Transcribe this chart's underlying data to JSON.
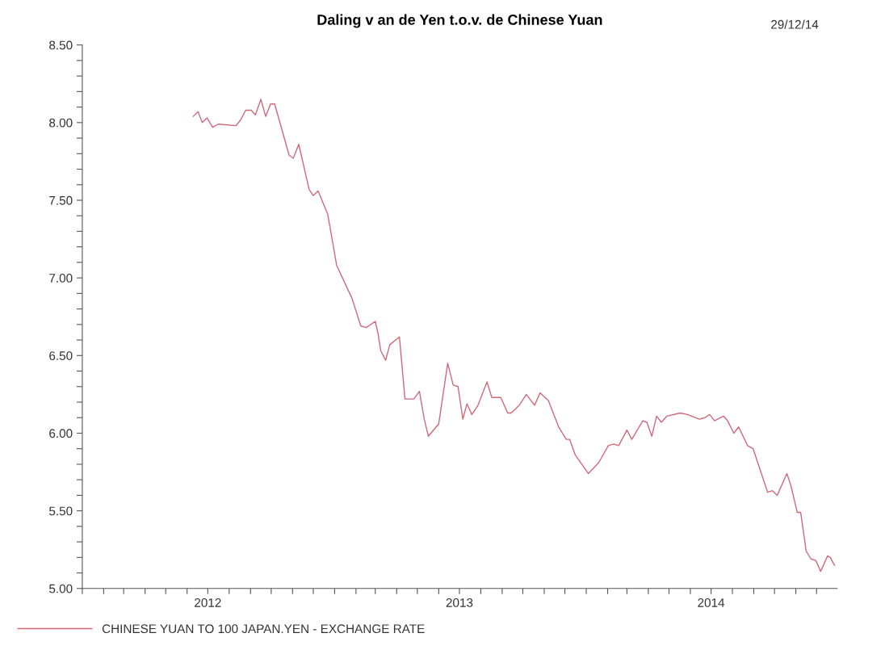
{
  "chart_data": {
    "type": "line",
    "title": "Daling v an de Yen t.o.v. de Chinese Yuan",
    "annotations": [
      "29/12/14"
    ],
    "x": [
      "2012-06-10",
      "2012-06-17",
      "2012-06-23",
      "2012-06-30",
      "2012-07-08",
      "2012-07-16",
      "2012-08-11",
      "2012-08-18",
      "2012-08-25",
      "2012-09-02",
      "2012-09-08",
      "2012-09-16",
      "2012-09-23",
      "2012-09-30",
      "2012-10-06",
      "2012-10-27",
      "2012-11-02",
      "2012-11-10",
      "2012-11-25",
      "2012-12-01",
      "2012-12-08",
      "2012-12-22",
      "2013-01-04",
      "2013-01-26",
      "2013-02-08",
      "2013-02-16",
      "2013-03-01",
      "2013-03-05",
      "2013-03-09",
      "2013-03-16",
      "2013-03-22",
      "2013-04-05",
      "2013-04-13",
      "2013-04-26",
      "2013-05-04",
      "2013-05-11",
      "2013-05-17",
      "2013-06-01",
      "2013-06-14",
      "2013-06-22",
      "2013-06-29",
      "2013-07-06",
      "2013-07-12",
      "2013-07-19",
      "2013-07-28",
      "2013-08-10",
      "2013-08-17",
      "2013-08-30",
      "2013-09-09",
      "2013-09-14",
      "2013-09-26",
      "2013-10-06",
      "2013-10-18",
      "2013-10-26",
      "2013-11-07",
      "2013-11-22",
      "2013-12-03",
      "2013-12-08",
      "2013-12-16",
      "2014-01-04",
      "2014-01-19",
      "2014-02-02",
      "2014-02-10",
      "2014-02-17",
      "2014-03-01",
      "2014-03-08",
      "2014-03-24",
      "2014-03-30",
      "2014-04-06",
      "2014-04-13",
      "2014-04-20",
      "2014-04-28",
      "2014-05-17",
      "2014-05-28",
      "2014-06-14",
      "2014-06-22",
      "2014-06-29",
      "2014-07-06",
      "2014-07-19",
      "2014-07-25",
      "2014-08-03",
      "2014-08-10",
      "2014-08-23",
      "2014-08-31",
      "2014-09-21",
      "2014-09-28",
      "2014-10-05",
      "2014-10-19",
      "2014-10-25",
      "2014-11-03",
      "2014-11-08",
      "2014-11-16",
      "2014-11-23",
      "2014-11-30",
      "2014-12-07",
      "2014-12-17",
      "2014-12-21",
      "2014-12-27"
    ],
    "series": [
      {
        "name": "CHINESE YUAN TO 100 JAPAN.YEN - EXCHANGE RATE",
        "color": "#d06a78",
        "values": [
          8.04,
          8.07,
          8.0,
          8.03,
          7.97,
          7.99,
          7.98,
          8.02,
          8.08,
          8.08,
          8.05,
          8.15,
          8.04,
          8.12,
          8.12,
          7.79,
          7.77,
          7.86,
          7.57,
          7.53,
          7.56,
          7.41,
          7.08,
          6.87,
          6.69,
          6.68,
          6.72,
          6.64,
          6.53,
          6.47,
          6.57,
          6.62,
          6.22,
          6.22,
          6.27,
          6.09,
          5.98,
          6.06,
          6.45,
          6.31,
          6.3,
          6.09,
          6.19,
          6.12,
          6.18,
          6.33,
          6.23,
          6.23,
          6.13,
          6.13,
          6.18,
          6.25,
          6.18,
          6.26,
          6.21,
          6.04,
          5.96,
          5.96,
          5.86,
          5.74,
          5.81,
          5.92,
          5.93,
          5.92,
          6.02,
          5.96,
          6.08,
          6.07,
          5.98,
          6.11,
          6.07,
          6.11,
          6.13,
          6.12,
          6.09,
          6.1,
          6.12,
          6.08,
          6.11,
          6.08,
          6.0,
          6.04,
          5.92,
          5.9,
          5.62,
          5.63,
          5.6,
          5.74,
          5.66,
          5.49,
          5.49,
          5.24,
          5.19,
          5.18,
          5.11,
          5.21,
          5.2,
          5.15
        ]
      }
    ],
    "xlim": [
      "2012-01-01",
      "2014-12-31"
    ],
    "xticks": [
      {
        "value": "2012-01-01",
        "label": null
      },
      {
        "value": "2012-02-01",
        "label": null
      },
      {
        "value": "2012-03-01",
        "label": null
      },
      {
        "value": "2012-04-01",
        "label": null
      },
      {
        "value": "2012-05-01",
        "label": null
      },
      {
        "value": "2012-06-01",
        "label": null
      },
      {
        "value": "2012-07-01",
        "label": "2012"
      },
      {
        "value": "2012-08-01",
        "label": null
      },
      {
        "value": "2012-09-01",
        "label": null
      },
      {
        "value": "2012-10-01",
        "label": null
      },
      {
        "value": "2012-11-01",
        "label": null
      },
      {
        "value": "2012-12-01",
        "label": null
      },
      {
        "value": "2013-01-01",
        "label": null
      },
      {
        "value": "2013-02-01",
        "label": null
      },
      {
        "value": "2013-03-01",
        "label": null
      },
      {
        "value": "2013-04-01",
        "label": null
      },
      {
        "value": "2013-05-01",
        "label": null
      },
      {
        "value": "2013-06-01",
        "label": null
      },
      {
        "value": "2013-07-01",
        "label": "2013"
      },
      {
        "value": "2013-08-01",
        "label": null
      },
      {
        "value": "2013-09-01",
        "label": null
      },
      {
        "value": "2013-10-01",
        "label": null
      },
      {
        "value": "2013-11-01",
        "label": null
      },
      {
        "value": "2013-12-01",
        "label": null
      },
      {
        "value": "2014-01-01",
        "label": null
      },
      {
        "value": "2014-02-01",
        "label": null
      },
      {
        "value": "2014-03-01",
        "label": null
      },
      {
        "value": "2014-04-01",
        "label": null
      },
      {
        "value": "2014-05-01",
        "label": null
      },
      {
        "value": "2014-06-01",
        "label": null
      },
      {
        "value": "2014-07-01",
        "label": "2014"
      },
      {
        "value": "2014-08-01",
        "label": null
      },
      {
        "value": "2014-09-01",
        "label": null
      },
      {
        "value": "2014-10-01",
        "label": null
      },
      {
        "value": "2014-11-01",
        "label": null
      },
      {
        "value": "2014-12-01",
        "label": null
      }
    ],
    "ylim": [
      5.0,
      8.5
    ],
    "yticks": [
      {
        "value": 5.0,
        "label": "5.00"
      },
      {
        "value": 5.1,
        "label": null
      },
      {
        "value": 5.2,
        "label": null
      },
      {
        "value": 5.3,
        "label": null
      },
      {
        "value": 5.4,
        "label": null
      },
      {
        "value": 5.5,
        "label": "5.50"
      },
      {
        "value": 5.6,
        "label": null
      },
      {
        "value": 5.7,
        "label": null
      },
      {
        "value": 5.8,
        "label": null
      },
      {
        "value": 5.9,
        "label": null
      },
      {
        "value": 6.0,
        "label": "6.00"
      },
      {
        "value": 6.1,
        "label": null
      },
      {
        "value": 6.2,
        "label": null
      },
      {
        "value": 6.3,
        "label": null
      },
      {
        "value": 6.4,
        "label": null
      },
      {
        "value": 6.5,
        "label": "6.50"
      },
      {
        "value": 6.6,
        "label": null
      },
      {
        "value": 6.7,
        "label": null
      },
      {
        "value": 6.8,
        "label": null
      },
      {
        "value": 6.9,
        "label": null
      },
      {
        "value": 7.0,
        "label": "7.00"
      },
      {
        "value": 7.1,
        "label": null
      },
      {
        "value": 7.2,
        "label": null
      },
      {
        "value": 7.3,
        "label": null
      },
      {
        "value": 7.4,
        "label": null
      },
      {
        "value": 7.5,
        "label": "7.50"
      },
      {
        "value": 7.6,
        "label": null
      },
      {
        "value": 7.7,
        "label": null
      },
      {
        "value": 7.8,
        "label": null
      },
      {
        "value": 7.9,
        "label": null
      },
      {
        "value": 8.0,
        "label": "8.00"
      },
      {
        "value": 8.1,
        "label": null
      },
      {
        "value": 8.2,
        "label": null
      },
      {
        "value": 8.3,
        "label": null
      },
      {
        "value": 8.4,
        "label": null
      },
      {
        "value": 8.5,
        "label": "8.50"
      }
    ],
    "legend": "bottom left",
    "grid": false,
    "marker": "none",
    "line_style": "solid"
  }
}
